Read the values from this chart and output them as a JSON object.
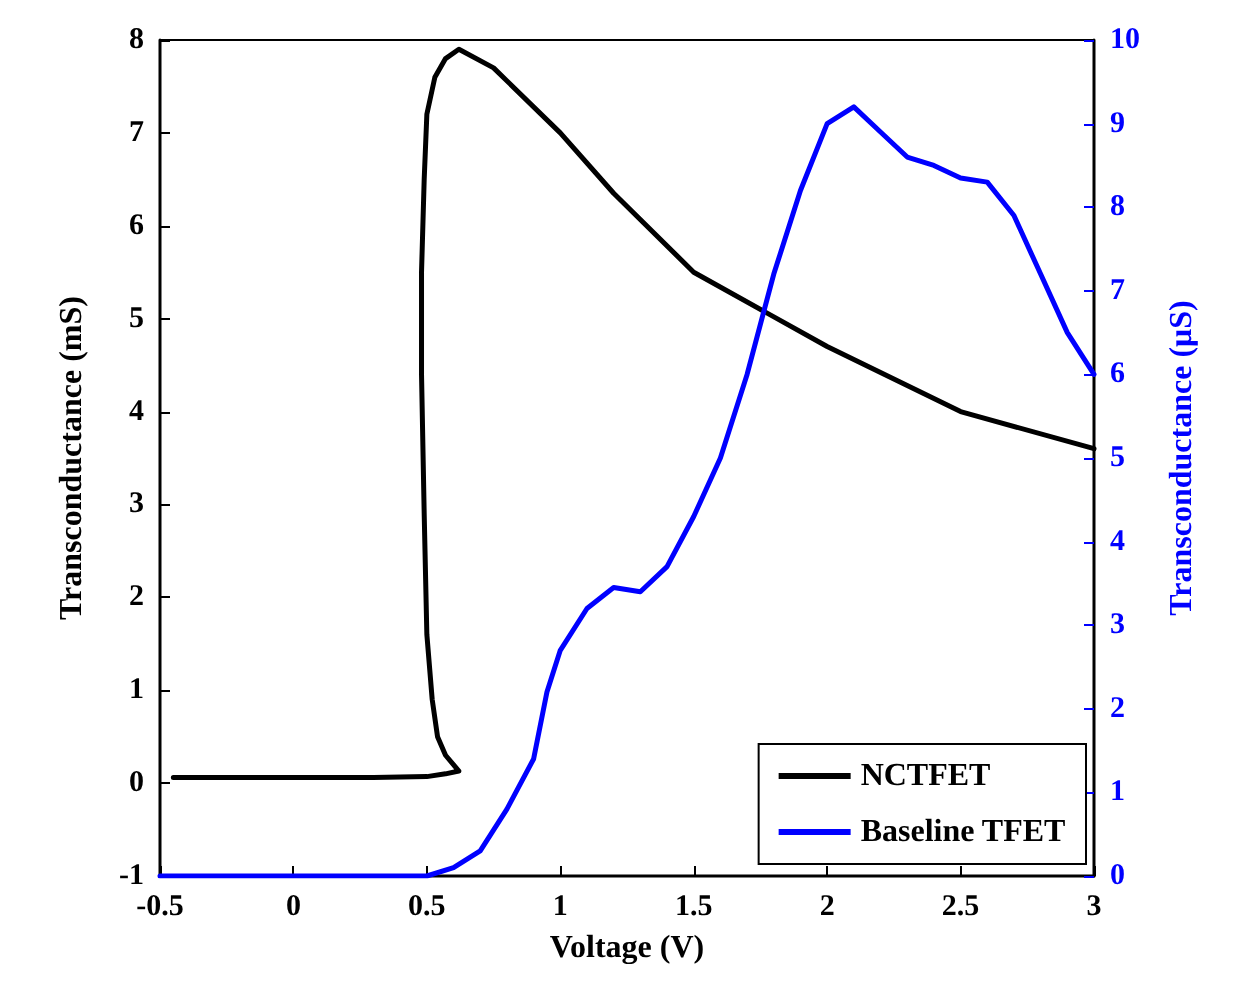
{
  "chart_data": {
    "type": "line",
    "xlabel": "Voltage (V)",
    "ylabel": "Transconductance (mS)",
    "y2label": "Transconductance (μS)",
    "xlim": [
      -0.5,
      3
    ],
    "xticks": [
      -0.5,
      0,
      0.5,
      1,
      1.5,
      2,
      2.5,
      3
    ],
    "ylim": [
      -1,
      8
    ],
    "yticks": [
      -1,
      0,
      1,
      2,
      3,
      4,
      5,
      6,
      7,
      8
    ],
    "y2lim": [
      0,
      10
    ],
    "y2ticks": [
      0,
      1,
      2,
      3,
      4,
      5,
      6,
      7,
      8,
      9,
      10
    ],
    "legend": "bottom right",
    "grid": false,
    "marker": "none",
    "line_style": "solid",
    "series": [
      {
        "name": "NCTFET",
        "color": "#000000",
        "x": [
          -0.45,
          0,
          0.3,
          0.5,
          0.57,
          0.62,
          0.57,
          0.54,
          0.52,
          0.5,
          0.49,
          0.48,
          0.48,
          0.49,
          0.5,
          0.53,
          0.57,
          0.62,
          0.75,
          1.0,
          1.2,
          1.5,
          2.0,
          2.5,
          3.0
        ],
        "values": [
          0.06,
          0.06,
          0.06,
          0.07,
          0.1,
          0.13,
          0.3,
          0.5,
          0.9,
          1.6,
          2.9,
          4.4,
          5.5,
          6.5,
          7.2,
          7.6,
          7.8,
          7.9,
          7.7,
          7.0,
          6.35,
          5.5,
          4.7,
          4.0,
          3.6
        ]
      },
      {
        "name": "Baseline TFET",
        "color": "#0000ff",
        "axis": "y2",
        "x": [
          -0.5,
          0,
          0.5,
          0.6,
          0.7,
          0.8,
          0.9,
          0.95,
          1.0,
          1.1,
          1.2,
          1.3,
          1.4,
          1.5,
          1.6,
          1.7,
          1.8,
          1.9,
          2.0,
          2.1,
          2.2,
          2.3,
          2.4,
          2.5,
          2.6,
          2.7,
          2.8,
          2.9,
          3.0
        ],
        "values": [
          0,
          0,
          0,
          0.1,
          0.3,
          0.8,
          1.4,
          2.2,
          2.7,
          3.2,
          3.45,
          3.4,
          3.7,
          4.3,
          5.0,
          6.0,
          7.2,
          8.2,
          9.0,
          9.2,
          8.9,
          8.6,
          8.5,
          8.35,
          8.3,
          7.9,
          7.2,
          6.5,
          6.0
        ]
      }
    ]
  }
}
